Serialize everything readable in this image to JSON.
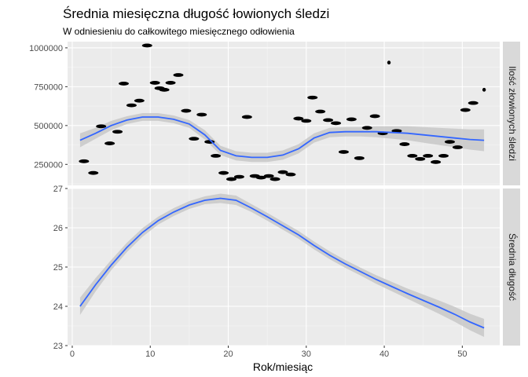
{
  "chart_data": {
    "type": "scatter",
    "title": "Średnia miesięczna długość łowionych śledzi",
    "subtitle": "W odniesieniu do całkowitego miesięcznego odłowienia",
    "xlabel": "Rok/miesiąc",
    "xlim": [
      -0.6,
      54.8
    ],
    "x_ticks": [
      0,
      10,
      20,
      30,
      40,
      50
    ],
    "grid": true,
    "colors": {
      "panel_bg": "#ebebeb",
      "grid_major": "#ffffff",
      "strip_bg": "#d9d9d9",
      "points": "#000000",
      "smooth_line": "#3366ff",
      "ribbon": "#c8c8c8"
    },
    "panels": [
      {
        "strip_label": "Ilość złowionych śledzi",
        "ylim": [
          115000,
          1040000
        ],
        "y_ticks": [
          250000,
          500000,
          750000,
          1000000
        ],
        "y_tick_labels": [
          "250000",
          "500000",
          "750000",
          "1000000"
        ],
        "points": [
          {
            "x": 1.5,
            "y": 270000
          },
          {
            "x": 2.7,
            "y": 195000
          },
          {
            "x": 3.7,
            "y": 495000
          },
          {
            "x": 4.8,
            "y": 385000
          },
          {
            "x": 5.8,
            "y": 460000
          },
          {
            "x": 6.6,
            "y": 770000
          },
          {
            "x": 7.6,
            "y": 630000
          },
          {
            "x": 8.6,
            "y": 660000
          },
          {
            "x": 9.6,
            "y": 1015000
          },
          {
            "x": 10.6,
            "y": 775000
          },
          {
            "x": 11.2,
            "y": 740000
          },
          {
            "x": 11.8,
            "y": 730000
          },
          {
            "x": 12.6,
            "y": 775000
          },
          {
            "x": 13.6,
            "y": 825000
          },
          {
            "x": 14.6,
            "y": 595000
          },
          {
            "x": 15.6,
            "y": 415000
          },
          {
            "x": 16.6,
            "y": 570000
          },
          {
            "x": 17.6,
            "y": 395000
          },
          {
            "x": 18.4,
            "y": 305000
          },
          {
            "x": 19.4,
            "y": 195000
          },
          {
            "x": 20.4,
            "y": 155000
          },
          {
            "x": 21.4,
            "y": 170000
          },
          {
            "x": 22.4,
            "y": 555000
          },
          {
            "x": 23.4,
            "y": 175000
          },
          {
            "x": 24.2,
            "y": 165000
          },
          {
            "x": 25.2,
            "y": 175000
          },
          {
            "x": 26.0,
            "y": 155000
          },
          {
            "x": 27.0,
            "y": 200000
          },
          {
            "x": 28.0,
            "y": 185000
          },
          {
            "x": 29.0,
            "y": 545000
          },
          {
            "x": 30.0,
            "y": 530000
          },
          {
            "x": 30.8,
            "y": 680000
          },
          {
            "x": 31.8,
            "y": 590000
          },
          {
            "x": 32.8,
            "y": 535000
          },
          {
            "x": 33.8,
            "y": 515000
          },
          {
            "x": 34.8,
            "y": 330000
          },
          {
            "x": 35.8,
            "y": 540000
          },
          {
            "x": 36.8,
            "y": 290000
          },
          {
            "x": 37.8,
            "y": 485000
          },
          {
            "x": 38.8,
            "y": 560000
          },
          {
            "x": 39.8,
            "y": 450000
          },
          {
            "x": 40.6,
            "y": 905000
          },
          {
            "x": 41.6,
            "y": 465000
          },
          {
            "x": 42.6,
            "y": 380000
          },
          {
            "x": 43.6,
            "y": 305000
          },
          {
            "x": 44.6,
            "y": 285000
          },
          {
            "x": 45.6,
            "y": 305000
          },
          {
            "x": 46.6,
            "y": 265000
          },
          {
            "x": 47.6,
            "y": 305000
          },
          {
            "x": 48.4,
            "y": 395000
          },
          {
            "x": 49.4,
            "y": 360000
          },
          {
            "x": 50.4,
            "y": 600000
          },
          {
            "x": 51.4,
            "y": 645000
          },
          {
            "x": 52.8,
            "y": 730000
          }
        ],
        "smooth": {
          "x": [
            1,
            3,
            5,
            7,
            9,
            11,
            13,
            15,
            17,
            19,
            21,
            23,
            25,
            27,
            29,
            31,
            33,
            35,
            37,
            39,
            41,
            43,
            45,
            47,
            49,
            51,
            52.8
          ],
          "y": [
            405000,
            450000,
            500000,
            535000,
            555000,
            555000,
            540000,
            510000,
            440000,
            340000,
            305000,
            295000,
            295000,
            310000,
            350000,
            420000,
            455000,
            460000,
            460000,
            460000,
            455000,
            450000,
            440000,
            430000,
            420000,
            410000,
            405000
          ],
          "lower": [
            360000,
            415000,
            470000,
            510000,
            530000,
            530000,
            515000,
            485000,
            410000,
            310000,
            275000,
            265000,
            265000,
            280000,
            320000,
            390000,
            425000,
            430000,
            430000,
            425000,
            415000,
            405000,
            390000,
            375000,
            360000,
            345000,
            335000
          ],
          "upper": [
            450000,
            485000,
            530000,
            560000,
            580000,
            580000,
            565000,
            535000,
            470000,
            370000,
            335000,
            325000,
            325000,
            340000,
            380000,
            450000,
            485000,
            490000,
            490000,
            495000,
            495000,
            495000,
            490000,
            485000,
            480000,
            475000,
            475000
          ]
        }
      },
      {
        "strip_label": "Średnia długość",
        "ylim": [
          23,
          27
        ],
        "y_ticks": [
          23,
          24,
          25,
          26,
          27
        ],
        "y_tick_labels": [
          "23",
          "24",
          "25",
          "26",
          "27"
        ],
        "points": [],
        "smooth": {
          "x": [
            1,
            3,
            5,
            7,
            9,
            11,
            13,
            15,
            17,
            19,
            21,
            23,
            25,
            27,
            29,
            31,
            33,
            35,
            37,
            39,
            41,
            43,
            45,
            47,
            49,
            51,
            52.8
          ],
          "y": [
            24.0,
            24.55,
            25.05,
            25.5,
            25.88,
            26.18,
            26.4,
            26.58,
            26.7,
            26.75,
            26.7,
            26.5,
            26.28,
            26.05,
            25.82,
            25.55,
            25.3,
            25.08,
            24.88,
            24.68,
            24.5,
            24.32,
            24.15,
            23.98,
            23.8,
            23.6,
            23.45
          ],
          "lower": [
            23.78,
            24.38,
            24.92,
            25.38,
            25.77,
            26.08,
            26.3,
            26.48,
            26.6,
            26.63,
            26.58,
            26.4,
            26.18,
            25.95,
            25.72,
            25.45,
            25.2,
            24.98,
            24.78,
            24.57,
            24.38,
            24.19,
            24.0,
            23.81,
            23.61,
            23.39,
            23.22
          ],
          "upper": [
            24.22,
            24.72,
            25.18,
            25.62,
            25.99,
            26.28,
            26.5,
            26.68,
            26.8,
            26.87,
            26.82,
            26.6,
            26.38,
            26.15,
            25.92,
            25.65,
            25.4,
            25.18,
            24.98,
            24.79,
            24.62,
            24.45,
            24.3,
            24.15,
            23.99,
            23.81,
            23.68
          ]
        }
      }
    ]
  }
}
